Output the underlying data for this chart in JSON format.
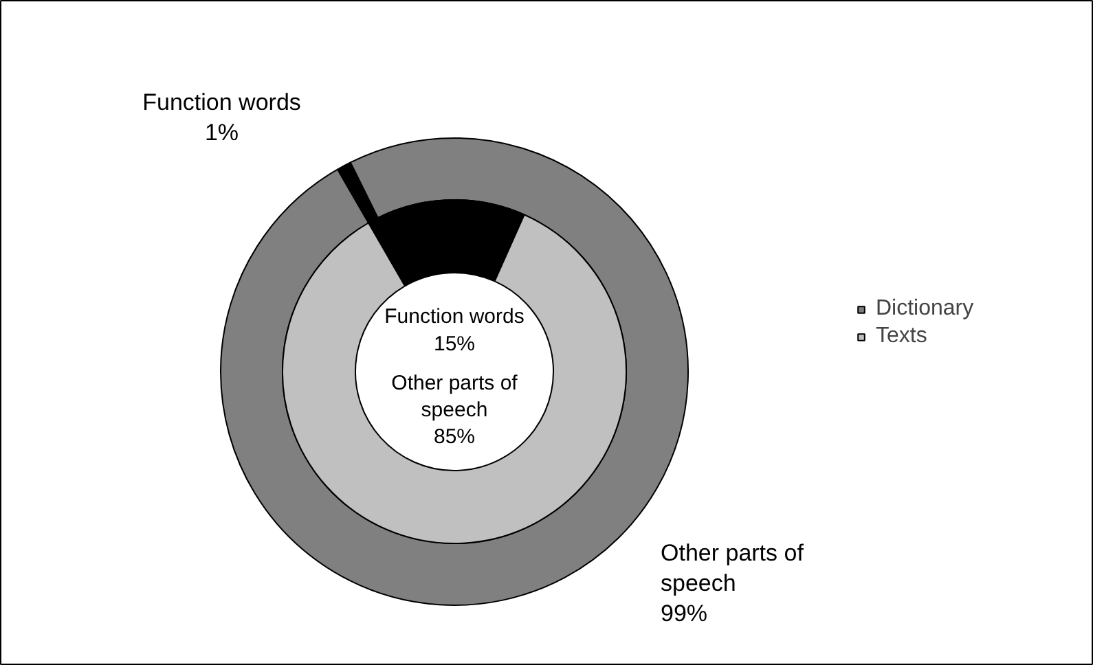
{
  "chart_data": {
    "type": "donut",
    "categories": [
      "Function words",
      "Other parts of speech"
    ],
    "series": [
      {
        "name": "Dictionary",
        "color": "#808080",
        "colors": [
          "#000000",
          "#808080"
        ],
        "values": [
          1,
          99
        ],
        "value_labels": [
          "1%",
          "99%"
        ]
      },
      {
        "name": "Texts",
        "color": "#c0c0c0",
        "colors": [
          "#000000",
          "#c0c0c0"
        ],
        "values": [
          15,
          85
        ],
        "value_labels": [
          "15%",
          "85%"
        ]
      }
    ],
    "legend": "right"
  }
}
